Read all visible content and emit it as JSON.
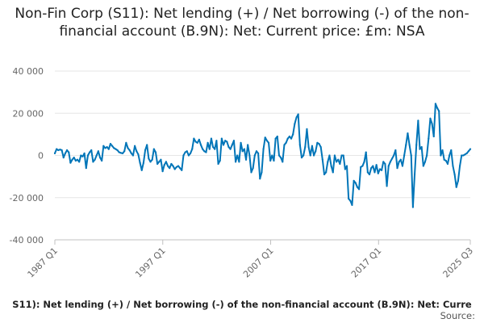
{
  "chart_data": {
    "type": "line",
    "title": "Non-Fin Corp (S11): Net lending (+) / Net borrowing (-) of the non-financial account (B.9N): Net: Current price: £m: NSA",
    "series_label": "S11): Net lending (+) / Net borrowing (-) of the non-financial account (B.9N): Net: Curre",
    "source_label": "Source:",
    "xlabel": "",
    "ylabel": "",
    "x_start": "1987 Q1",
    "x_end": "2025 Q3",
    "x_tick_labels": [
      "1987 Q1",
      "1997 Q1",
      "2007 Q1",
      "2017 Q1",
      "2025 Q3"
    ],
    "y_ticks": [
      40000,
      20000,
      0,
      -20000,
      -40000
    ],
    "y_tick_labels": [
      "40 000",
      "20 000",
      "0",
      "-20 000",
      "-40 000"
    ],
    "ylim": [
      -40000,
      40000
    ],
    "grid": true,
    "line_color": "#0075b8",
    "grid_color": "#e6e6e6",
    "series": [
      {
        "values": [
          1000,
          3000,
          2500,
          2800,
          2500,
          -1000,
          1000,
          2500,
          1500,
          -3500,
          -2000,
          -1000,
          -2500,
          -2000,
          -3000,
          0,
          -500,
          1000,
          -6000,
          0,
          1500,
          2500,
          -3000,
          -2000,
          0,
          2000,
          -1000,
          -2500,
          4500,
          3500,
          4000,
          3000,
          5500,
          4500,
          3500,
          3000,
          2500,
          1500,
          1200,
          1000,
          2000,
          6000,
          3500,
          2500,
          1000,
          0,
          4500,
          2000,
          500,
          -3500,
          -7000,
          -3500,
          2500,
          5000,
          -1500,
          -3000,
          -2000,
          3000,
          1500,
          -4000,
          -3000,
          -2000,
          -7500,
          -4500,
          -3000,
          -5000,
          -6000,
          -4000,
          -5000,
          -6500,
          -5500,
          -5000,
          -6000,
          -7000,
          0,
          1500,
          2000,
          0,
          1000,
          3000,
          8000,
          6500,
          6000,
          7500,
          5000,
          3000,
          2000,
          1500,
          6000,
          3000,
          8000,
          4000,
          3000,
          7000,
          -4000,
          -2500,
          8000,
          5000,
          7000,
          6500,
          4000,
          3000,
          5000,
          7000,
          -3000,
          0,
          -3000,
          6000,
          2000,
          3000,
          -2000,
          5000,
          0,
          -8000,
          -6000,
          0,
          2000,
          1000,
          -11000,
          -8000,
          3000,
          8500,
          7000,
          6000,
          -2500,
          0,
          -2500,
          8000,
          9000,
          0,
          -1000,
          -3000,
          5000,
          6000,
          8000,
          9000,
          8000,
          10000,
          15000,
          18000,
          19500,
          5000,
          -1000,
          0,
          4000,
          12500,
          4000,
          0,
          4500,
          0,
          2000,
          6000,
          5500,
          4000,
          -2000,
          -9000,
          -8000,
          -3000,
          0,
          -5000,
          -8000,
          0,
          -3000,
          -2000,
          -4000,
          0,
          0,
          -6500,
          -5000,
          -20500,
          -21500,
          -23500,
          -12000,
          -13000,
          -15000,
          -16000,
          -5500,
          -5000,
          -3000,
          1500,
          -8000,
          -9000,
          -6000,
          -5000,
          -8000,
          -4500,
          -8500,
          -6500,
          -7000,
          -3000,
          -4000,
          -14500,
          -5000,
          -3000,
          -1500,
          0,
          2500,
          -6000,
          -3000,
          -2000,
          -5000,
          0,
          5000,
          10500,
          5000,
          0,
          -24500,
          -9000,
          5000,
          16500,
          3000,
          4000,
          -5000,
          -3000,
          0,
          8000,
          17500,
          15000,
          9000,
          24500,
          22500,
          21000,
          0,
          2500,
          -2000,
          -2500,
          -4000,
          0,
          2500,
          -5000,
          -9000,
          -15000,
          -12000,
          -5000,
          0,
          0,
          500,
          1000,
          2000,
          3000
        ]
      }
    ]
  }
}
